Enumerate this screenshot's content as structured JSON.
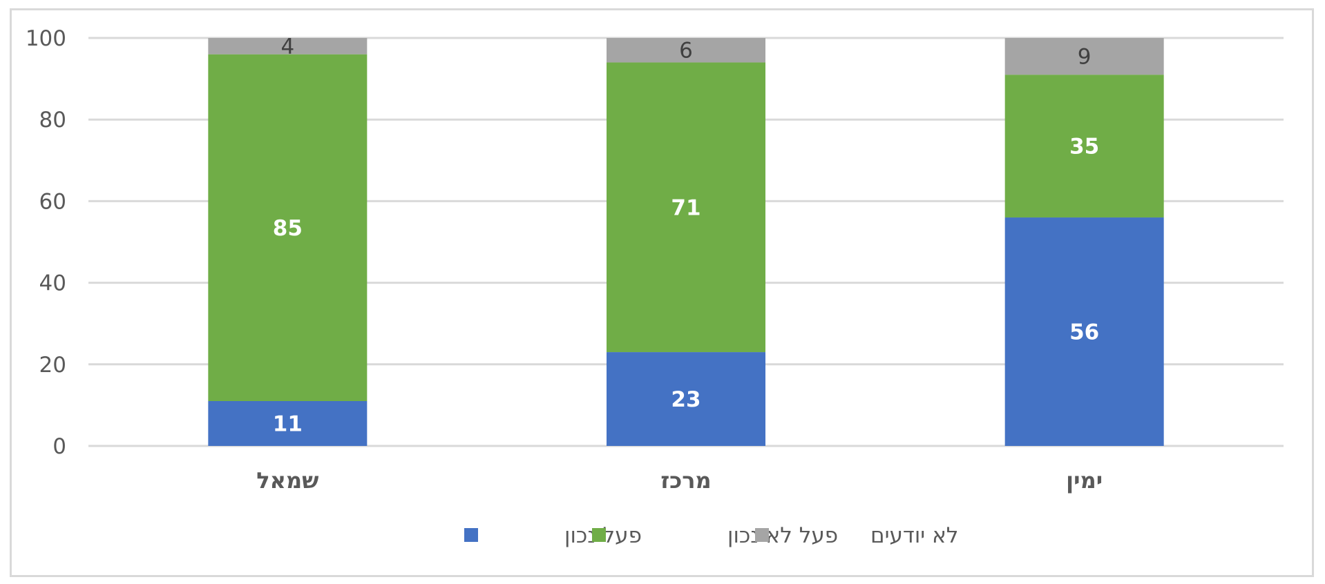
{
  "chart_data": {
    "type": "bar",
    "stacked": true,
    "categories": [
      "שמאל",
      "מרכז",
      "ימין"
    ],
    "series": [
      {
        "name": "פעל נכון",
        "color": "#4472c4",
        "values": [
          11,
          23,
          56
        ]
      },
      {
        "name": "פעל לא נכון",
        "color": "#70ad47",
        "values": [
          85,
          71,
          35
        ]
      },
      {
        "name": "לא יודעים",
        "color": "#a5a5a5",
        "values": [
          4,
          6,
          9
        ]
      }
    ],
    "ylim": [
      0,
      100
    ],
    "yticks": [
      0,
      20,
      40,
      60,
      80,
      100
    ],
    "grid": true,
    "legend_position": "bottom",
    "data_labels": true
  }
}
